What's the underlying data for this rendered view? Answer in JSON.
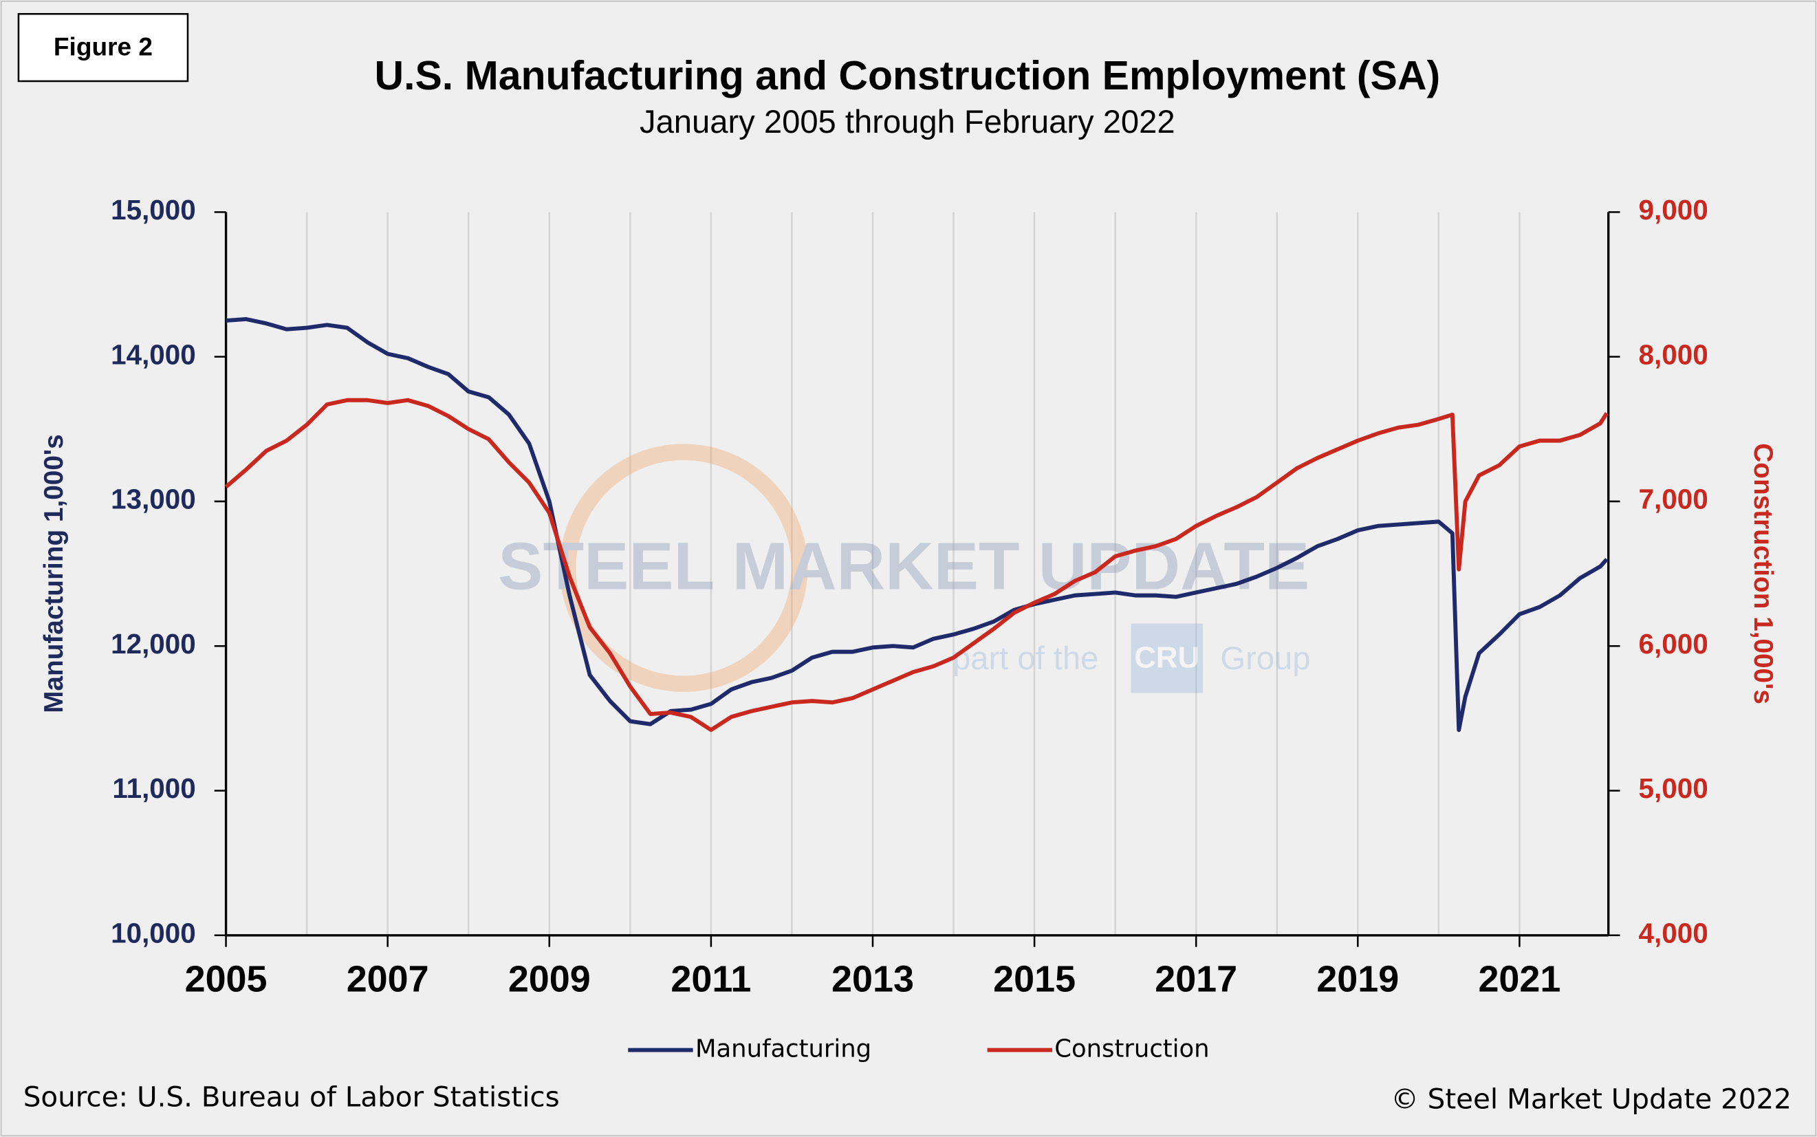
{
  "figure_label": "Figure 2",
  "source": "Source: U.S. Bureau  of Labor Statistics",
  "copyright": "© Steel Market Update 2022",
  "watermark": {
    "brand": "STEEL MARKET UPDATE",
    "tagline_start": "part of the",
    "logo": "CRU",
    "tagline_end": "Group"
  },
  "chart_data": {
    "type": "line",
    "title": "U.S. Manufacturing and Construction Employment (SA)",
    "subtitle": "January 2005 through February 2022",
    "y_label": "Manufacturing 1,000's",
    "y2_label": "Construction 1,000's",
    "xlim": [
      2005,
      2022.1
    ],
    "xticks": [
      2005,
      2007,
      2009,
      2011,
      2013,
      2015,
      2017,
      2019,
      2021
    ],
    "x_gridlines": [
      2006,
      2007,
      2008,
      2009,
      2010,
      2011,
      2012,
      2013,
      2014,
      2015,
      2016,
      2017,
      2018,
      2019,
      2020,
      2021
    ],
    "ylim": [
      10000,
      15000
    ],
    "yticks": [
      {
        "value": 10000,
        "label": "10,000"
      },
      {
        "value": 11000,
        "label": "11,000"
      },
      {
        "value": 12000,
        "label": "12,000"
      },
      {
        "value": 13000,
        "label": "13,000"
      },
      {
        "value": 14000,
        "label": "14,000"
      },
      {
        "value": 15000,
        "label": "15,000"
      }
    ],
    "y2lim": [
      4000,
      9000
    ],
    "y2ticks": [
      {
        "value": 4000,
        "label": "4,000"
      },
      {
        "value": 5000,
        "label": "5,000"
      },
      {
        "value": 6000,
        "label": "6,000"
      },
      {
        "value": 7000,
        "label": "7,000"
      },
      {
        "value": 8000,
        "label": "8,000"
      },
      {
        "value": 9000,
        "label": "9,000"
      }
    ],
    "grid": true,
    "legend": "bottom",
    "x": [
      2005,
      2005.25,
      2005.5,
      2005.75,
      2006,
      2006.25,
      2006.5,
      2006.75,
      2007,
      2007.25,
      2007.5,
      2007.75,
      2008,
      2008.25,
      2008.5,
      2008.75,
      2009,
      2009.25,
      2009.5,
      2009.75,
      2010,
      2010.25,
      2010.5,
      2010.75,
      2011,
      2011.25,
      2011.5,
      2011.75,
      2012,
      2012.25,
      2012.5,
      2012.75,
      2013,
      2013.25,
      2013.5,
      2013.75,
      2014,
      2014.25,
      2014.5,
      2014.75,
      2015,
      2015.25,
      2015.5,
      2015.75,
      2016,
      2016.25,
      2016.5,
      2016.75,
      2017,
      2017.25,
      2017.5,
      2017.75,
      2018,
      2018.25,
      2018.5,
      2018.75,
      2019,
      2019.25,
      2019.5,
      2019.75,
      2020,
      2020.17,
      2020.25,
      2020.33,
      2020.5,
      2020.75,
      2021,
      2021.25,
      2021.5,
      2021.75,
      2022,
      2022.08
    ],
    "series": [
      {
        "name": "Manufacturing",
        "color": "#1f2a6b",
        "values": [
          14250,
          14260,
          14230,
          14190,
          14200,
          14220,
          14200,
          14100,
          14020,
          13990,
          13930,
          13880,
          13760,
          13720,
          13600,
          13400,
          13000,
          12350,
          11800,
          11620,
          11480,
          11460,
          11550,
          11560,
          11600,
          11700,
          11750,
          11780,
          11830,
          11920,
          11960,
          11960,
          11990,
          12000,
          11990,
          12050,
          12080,
          12120,
          12170,
          12250,
          12290,
          12320,
          12350,
          12360,
          12370,
          12350,
          12350,
          12340,
          12370,
          12400,
          12430,
          12480,
          12540,
          12610,
          12690,
          12740,
          12800,
          12830,
          12840,
          12850,
          12860,
          12780,
          11420,
          11650,
          11950,
          12080,
          12220,
          12270,
          12350,
          12470,
          12550,
          12600
        ]
      },
      {
        "name": "Construction",
        "color": "#c8281e",
        "axis": "y2",
        "values": [
          7100,
          7220,
          7350,
          7420,
          7530,
          7670,
          7700,
          7700,
          7680,
          7700,
          7660,
          7590,
          7500,
          7430,
          7270,
          7130,
          6920,
          6480,
          6130,
          5950,
          5720,
          5530,
          5540,
          5510,
          5420,
          5510,
          5550,
          5580,
          5610,
          5620,
          5610,
          5640,
          5700,
          5760,
          5820,
          5860,
          5920,
          6020,
          6120,
          6230,
          6300,
          6360,
          6450,
          6510,
          6620,
          6660,
          6690,
          6740,
          6830,
          6900,
          6960,
          7030,
          7130,
          7230,
          7300,
          7360,
          7420,
          7470,
          7510,
          7530,
          7570,
          7600,
          6530,
          7000,
          7180,
          7250,
          7380,
          7420,
          7420,
          7460,
          7540,
          7610
        ]
      }
    ]
  }
}
